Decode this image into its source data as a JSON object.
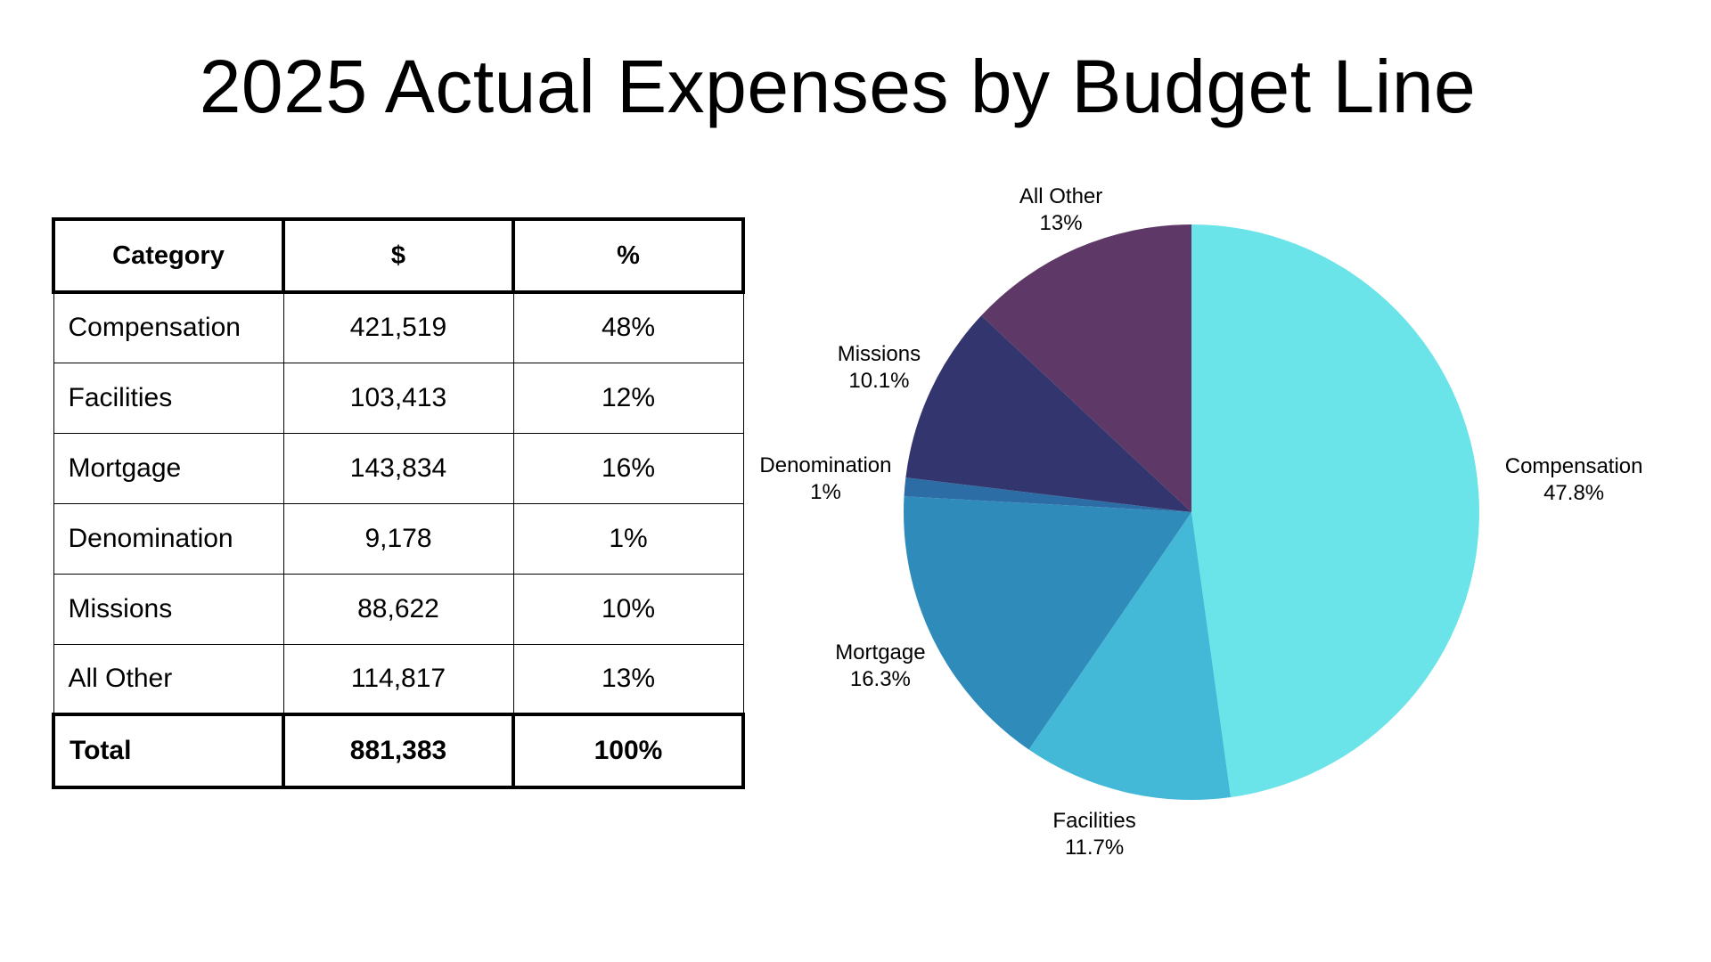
{
  "title": "2025 Actual Expenses by Budget Line",
  "table": {
    "headers": [
      "Category",
      "$",
      "%"
    ],
    "rows": [
      {
        "category": "Compensation",
        "amount": "421,519",
        "percent": "48%"
      },
      {
        "category": "Facilities",
        "amount": "103,413",
        "percent": "12%"
      },
      {
        "category": "Mortgage",
        "amount": "143,834",
        "percent": "16%"
      },
      {
        "category": "Denomination",
        "amount": "9,178",
        "percent": "1%"
      },
      {
        "category": "Missions",
        "amount": "88,622",
        "percent": "10%"
      },
      {
        "category": "All Other",
        "amount": "114,817",
        "percent": "13%"
      }
    ],
    "total": {
      "category": "Total",
      "amount": "881,383",
      "percent": "100%"
    }
  },
  "chart_data": {
    "type": "pie",
    "title": "2025 Actual Expenses by Budget Line",
    "slices": [
      {
        "label": "Compensation",
        "value": 421519,
        "percent_label": "47.8%",
        "color": "#6AE4E8"
      },
      {
        "label": "Facilities",
        "value": 103413,
        "percent_label": "11.7%",
        "color": "#44B8D7"
      },
      {
        "label": "Mortgage",
        "value": 143834,
        "percent_label": "16.3%",
        "color": "#2F8CBA"
      },
      {
        "label": "Denomination",
        "value": 9178,
        "percent_label": "1%",
        "color": "#2D6DA5"
      },
      {
        "label": "Missions",
        "value": 88622,
        "percent_label": "10.1%",
        "color": "#33356E"
      },
      {
        "label": "All Other",
        "value": 114817,
        "percent_label": "13%",
        "color": "#5E3866"
      }
    ],
    "start_angle": "12 o'clock",
    "direction": "clockwise",
    "labels": "outside"
  }
}
